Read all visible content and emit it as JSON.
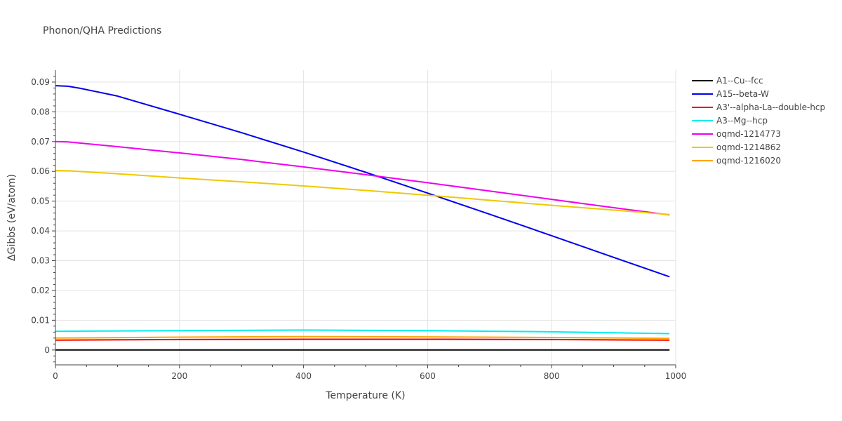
{
  "chart_data": {
    "type": "line",
    "title": "Phonon/QHA Predictions",
    "xlabel": "Temperature (K)",
    "ylabel": "ΔGibbs (eV/atom)",
    "xlim": [
      0,
      1000
    ],
    "ylim": [
      -0.005,
      0.094
    ],
    "xticks": [
      0,
      200,
      400,
      600,
      800,
      1000
    ],
    "xtick_labels": [
      "0",
      "200",
      "400",
      "600",
      "800",
      "1000"
    ],
    "yticks": [
      0,
      0.01,
      0.02,
      0.03,
      0.04,
      0.05,
      0.06,
      0.07,
      0.08,
      0.09
    ],
    "ytick_labels": [
      "0",
      "0.01",
      "0.02",
      "0.03",
      "0.04",
      "0.05",
      "0.06",
      "0.07",
      "0.08",
      "0.09"
    ],
    "grid": true,
    "legend_position": "right",
    "series": [
      {
        "name": "A1--Cu--fcc",
        "color": "#000000",
        "x": [
          0,
          990
        ],
        "y": [
          0,
          0
        ]
      },
      {
        "name": "A15--beta-W",
        "color": "#0000ee",
        "x": [
          0,
          20,
          40,
          100,
          200,
          300,
          400,
          500,
          600,
          700,
          800,
          900,
          990
        ],
        "y": [
          0.0888,
          0.0886,
          0.0879,
          0.0853,
          0.0792,
          0.073,
          0.0665,
          0.0597,
          0.0527,
          0.0456,
          0.0384,
          0.0311,
          0.0246
        ]
      },
      {
        "name": "A3'--alpha-La--double-hcp",
        "color": "#ee0000",
        "x": [
          0,
          200,
          400,
          600,
          800,
          990
        ],
        "y": [
          0.0033,
          0.0035,
          0.0036,
          0.0036,
          0.0035,
          0.0033
        ]
      },
      {
        "name": "A3--Mg--hcp",
        "color": "#00eeee",
        "x": [
          0,
          200,
          400,
          600,
          800,
          990
        ],
        "y": [
          0.0063,
          0.0065,
          0.0067,
          0.0065,
          0.0061,
          0.0055
        ]
      },
      {
        "name": "oqmd-1214773",
        "color": "#ee00ee",
        "x": [
          0,
          20,
          100,
          200,
          300,
          400,
          500,
          600,
          700,
          800,
          900,
          990
        ],
        "y": [
          0.07,
          0.0699,
          0.0683,
          0.0662,
          0.064,
          0.0615,
          0.0589,
          0.0562,
          0.0534,
          0.0506,
          0.0478,
          0.0454
        ]
      },
      {
        "name": "oqmd-1214862",
        "color": "#eec900",
        "x": [
          0,
          20,
          100,
          200,
          300,
          400,
          500,
          600,
          700,
          800,
          900,
          990
        ],
        "y": [
          0.0603,
          0.0602,
          0.0592,
          0.0578,
          0.0565,
          0.0551,
          0.0536,
          0.052,
          0.0503,
          0.0486,
          0.047,
          0.0455
        ]
      },
      {
        "name": "oqmd-1216020",
        "color": "#ffa500",
        "x": [
          0,
          200,
          400,
          600,
          800,
          990
        ],
        "y": [
          0.004,
          0.0043,
          0.0045,
          0.0044,
          0.0042,
          0.0039
        ]
      }
    ]
  }
}
